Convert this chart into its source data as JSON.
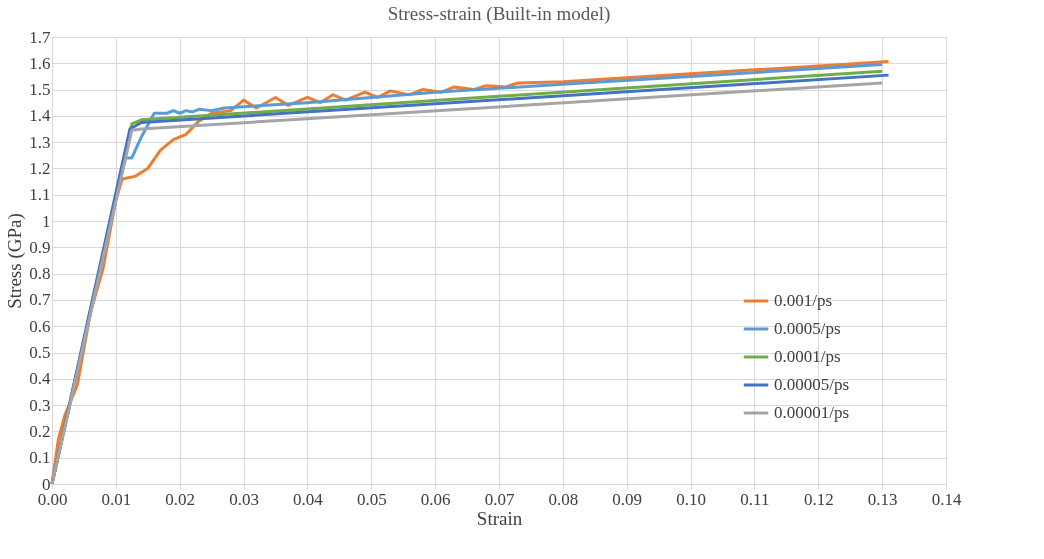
{
  "chart_data": {
    "type": "line",
    "title": "Stress-strain (Built-in model)",
    "xlabel": "Strain",
    "ylabel": "Stress (GPa)",
    "xlim": [
      0,
      0.14
    ],
    "ylim": [
      0,
      1.7
    ],
    "xticks": [
      {
        "value": 0,
        "label": "0.00"
      },
      {
        "value": 0.01,
        "label": "0.01"
      },
      {
        "value": 0.02,
        "label": "0.02"
      },
      {
        "value": 0.03,
        "label": "0.03"
      },
      {
        "value": 0.04,
        "label": "0.04"
      },
      {
        "value": 0.05,
        "label": "0.05"
      },
      {
        "value": 0.06,
        "label": "0.06"
      },
      {
        "value": 0.07,
        "label": "0.07"
      },
      {
        "value": 0.08,
        "label": "0.08"
      },
      {
        "value": 0.09,
        "label": "0.09"
      },
      {
        "value": 0.1,
        "label": "0.10"
      },
      {
        "value": 0.11,
        "label": "0.11"
      },
      {
        "value": 0.12,
        "label": "0.12"
      },
      {
        "value": 0.13,
        "label": "0.13"
      },
      {
        "value": 0.14,
        "label": "0.14"
      }
    ],
    "yticks": [
      0,
      0.1,
      0.2,
      0.3,
      0.4,
      0.5,
      0.6,
      0.7,
      0.8,
      0.9,
      1,
      1.1,
      1.2,
      1.3,
      1.4,
      1.5,
      1.6,
      1.7
    ],
    "grid": true,
    "legend": "right",
    "marker": "none",
    "line_style": "solid",
    "series": [
      {
        "name": "0.001/ps",
        "color": "#ed7d31",
        "x": [
          0,
          0.001,
          0.002,
          0.004,
          0.006,
          0.008,
          0.01,
          0.011,
          0.013,
          0.015,
          0.017,
          0.019,
          0.021,
          0.023,
          0.025,
          0.028,
          0.03,
          0.032,
          0.035,
          0.037,
          0.04,
          0.042,
          0.044,
          0.046,
          0.049,
          0.051,
          0.053,
          0.056,
          0.058,
          0.061,
          0.063,
          0.066,
          0.068,
          0.071,
          0.073,
          0.08,
          0.09,
          0.1,
          0.11,
          0.12,
          0.131
        ],
        "values": [
          0,
          0.17,
          0.26,
          0.38,
          0.65,
          0.82,
          1.08,
          1.16,
          1.17,
          1.2,
          1.27,
          1.31,
          1.33,
          1.38,
          1.41,
          1.42,
          1.46,
          1.43,
          1.47,
          1.44,
          1.47,
          1.45,
          1.48,
          1.46,
          1.49,
          1.47,
          1.495,
          1.48,
          1.5,
          1.49,
          1.51,
          1.5,
          1.515,
          1.51,
          1.525,
          1.53,
          1.545,
          1.56,
          1.575,
          1.59,
          1.607
        ]
      },
      {
        "name": "0.0005/ps",
        "color": "#5b9bd5",
        "x": [
          0,
          0.0115,
          0.0125,
          0.014,
          0.016,
          0.018,
          0.019,
          0.02,
          0.021,
          0.022,
          0.023,
          0.025,
          0.027,
          0.03,
          0.04,
          0.06,
          0.08,
          0.1,
          0.13
        ],
        "values": [
          0,
          1.24,
          1.24,
          1.32,
          1.41,
          1.41,
          1.42,
          1.41,
          1.42,
          1.415,
          1.425,
          1.42,
          1.43,
          1.435,
          1.45,
          1.49,
          1.52,
          1.55,
          1.595
        ]
      },
      {
        "name": "0.0001/ps",
        "color": "#70ad47",
        "x": [
          0,
          0.0125,
          0.014,
          0.13
        ],
        "values": [
          0,
          1.37,
          1.385,
          1.57
        ]
      },
      {
        "name": "0.00005/ps",
        "color": "#4472c4",
        "x": [
          0,
          0.0122,
          0.014,
          0.131
        ],
        "values": [
          0,
          1.35,
          1.375,
          1.555
        ]
      },
      {
        "name": "0.00001/ps",
        "color": "#a5a5a5",
        "x": [
          0,
          0.0125,
          0.014,
          0.13
        ],
        "values": [
          0,
          1.345,
          1.35,
          1.525
        ]
      }
    ]
  }
}
